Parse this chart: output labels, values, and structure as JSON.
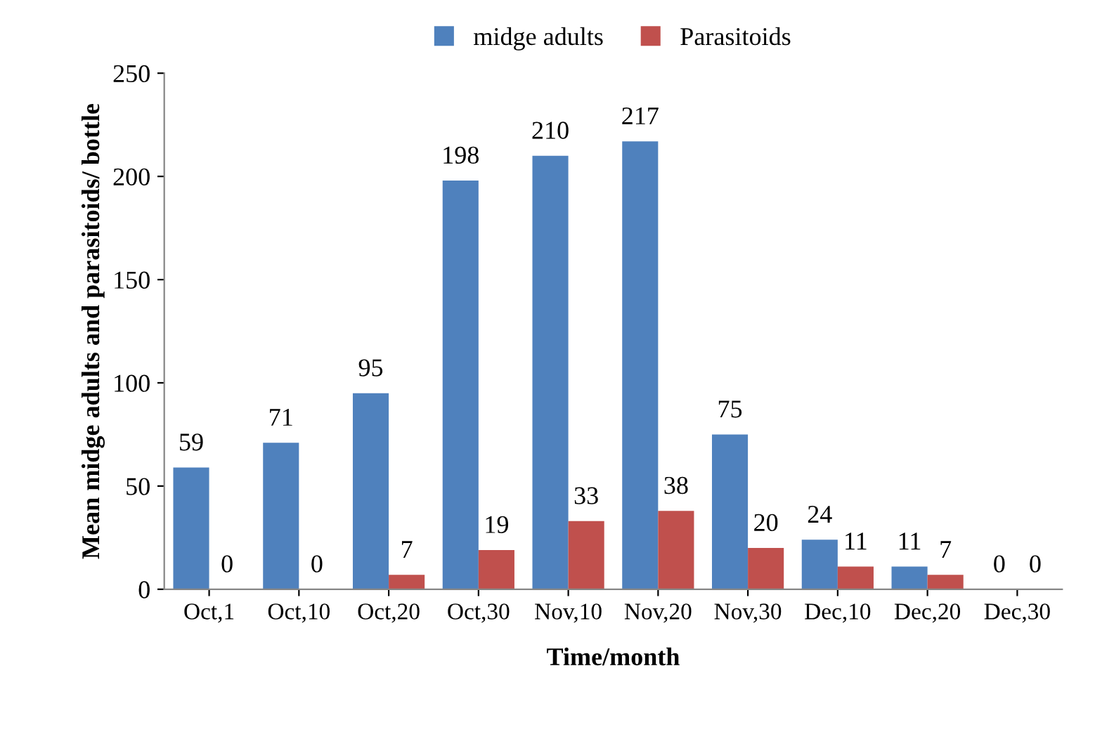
{
  "chart_data": {
    "type": "bar",
    "xlabel": "Time/month",
    "ylabel": "Mean midge adults and parasitoids/ bottle",
    "categories": [
      "Oct,1",
      "Oct,10",
      "Oct,20",
      "Oct,30",
      "Nov,10",
      "Nov,20",
      "Nov,30",
      "Dec,10",
      "Dec,20",
      "Dec,30"
    ],
    "series": [
      {
        "name": "midge adults",
        "color": "#4f81bd",
        "values": [
          59,
          71,
          95,
          198,
          210,
          217,
          75,
          24,
          11,
          0
        ]
      },
      {
        "name": "Parasitoids",
        "color": "#c0504d",
        "values": [
          0,
          0,
          7,
          19,
          33,
          38,
          20,
          11,
          7,
          0
        ]
      }
    ],
    "ylim": [
      0,
      250
    ],
    "yticks": [
      0,
      50,
      100,
      150,
      200,
      250
    ],
    "grid": false,
    "legend": "top",
    "data_labels": true
  }
}
